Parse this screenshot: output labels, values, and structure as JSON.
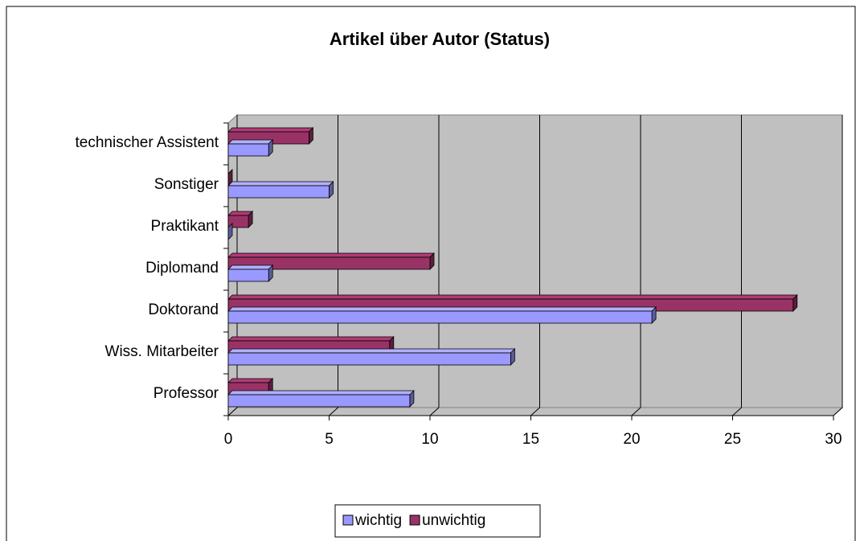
{
  "chart_data": {
    "type": "bar3d_horizontal",
    "title": "Artikel über Autor (Status)",
    "categories": [
      "Professor",
      "Wiss. Mitarbeiter",
      "Doktorand",
      "Diplomand",
      "Praktikant",
      "Sonstiger",
      "technischer Assistent"
    ],
    "series": [
      {
        "name": "wichtig",
        "color": "#9999ff",
        "values": [
          9,
          14,
          21,
          2,
          0,
          5,
          2
        ]
      },
      {
        "name": "unwichtig",
        "color": "#993366",
        "values": [
          2,
          8,
          28,
          10,
          1,
          0,
          4
        ]
      }
    ],
    "xlim": [
      0,
      30
    ],
    "xticks": [
      0,
      5,
      10,
      15,
      20,
      25,
      30
    ],
    "grid": true,
    "legend": "bottom"
  }
}
